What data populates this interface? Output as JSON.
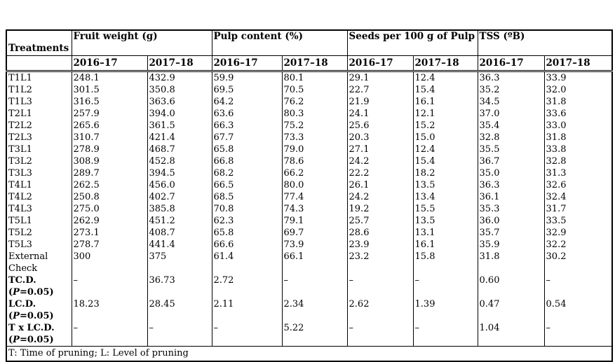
{
  "table": {
    "treatments_header": "Treatments",
    "column_groups": [
      {
        "label": "Fruit weight (g)"
      },
      {
        "label": "Pulp content (%)"
      },
      {
        "label": "Seeds per 100 g of Pulp"
      },
      {
        "label": "TSS (ºB)"
      }
    ],
    "year_headers": [
      "2016–17",
      "2017–18"
    ],
    "rows": [
      {
        "label": "T1L1",
        "values": [
          "248.1",
          "432.9",
          "59.9",
          "80.1",
          "29.1",
          "12.4",
          "36.3",
          "33.9"
        ]
      },
      {
        "label": "T1L2",
        "values": [
          "301.5",
          "350.8",
          "69.5",
          "70.5",
          "22.7",
          "15.4",
          "35.2",
          "32.0"
        ]
      },
      {
        "label": "T1L3",
        "values": [
          "316.5",
          "363.6",
          "64.2",
          "76.2",
          "21.9",
          "16.1",
          "34.5",
          "31.8"
        ]
      },
      {
        "label": "T2L1",
        "values": [
          "257.9",
          "394.0",
          "63.6",
          "80.3",
          "24.1",
          "12.1",
          "37.0",
          "33.6"
        ]
      },
      {
        "label": "T2L2",
        "values": [
          "265.6",
          "361.5",
          "66.3",
          "75.2",
          "25.6",
          "15.2",
          "35.4",
          "33.0"
        ]
      },
      {
        "label": "T2L3",
        "values": [
          "310.7",
          "421.4",
          "67.7",
          "73.3",
          "20.3",
          "15.0",
          "32.8",
          "31.8"
        ]
      },
      {
        "label": "T3L1",
        "values": [
          "278.9",
          "468.7",
          "65.8",
          "79.0",
          "27.1",
          "12.4",
          "35.5",
          "33.8"
        ]
      },
      {
        "label": "T3L2",
        "values": [
          "308.9",
          "452.8",
          "66.8",
          "78.6",
          "24.2",
          "15.4",
          "36.7",
          "32.8"
        ]
      },
      {
        "label": "T3L3",
        "values": [
          "289.7",
          "394.5",
          "68.2",
          "66.2",
          "22.2",
          "18.2",
          "35.0",
          "31.3"
        ]
      },
      {
        "label": "T4L1",
        "values": [
          "262.5",
          "456.0",
          "66.5",
          "80.0",
          "26.1",
          "13.5",
          "36.3",
          "32.6"
        ]
      },
      {
        "label": "T4L2",
        "values": [
          "250.8",
          "402.7",
          "68.5",
          "77.4",
          "24.2",
          "13.4",
          "36.1",
          "32.4"
        ]
      },
      {
        "label": "T4L3",
        "values": [
          "275.0",
          "385.8",
          "70.8",
          "74.3",
          "19.2",
          "15.5",
          "35.3",
          "31.7"
        ]
      },
      {
        "label": "T5L1",
        "values": [
          "262.9",
          "451.2",
          "62.3",
          "79.1",
          "25.7",
          "13.5",
          "36.0",
          "33.5"
        ]
      },
      {
        "label": "T5L2",
        "values": [
          "273.1",
          "408.7",
          "65.8",
          "69.7",
          "28.6",
          "13.1",
          "35.7",
          "32.9"
        ]
      },
      {
        "label": "T5L3",
        "values": [
          "278.7",
          "441.4",
          "66.6",
          "73.9",
          "23.9",
          "16.1",
          "35.9",
          "32.2"
        ]
      },
      {
        "label": "External Check",
        "values": [
          "300",
          "375",
          "61.4",
          "66.1",
          "23.2",
          "15.8",
          "31.8",
          "30.2"
        ]
      },
      {
        "label": "TC.D.",
        "sub": "(P=0.05)",
        "bold": true,
        "values": [
          "–",
          "36.73",
          "2.72",
          "–",
          "–",
          "–",
          "0.60",
          "–"
        ]
      },
      {
        "label": "LC.D.",
        "sub": "(P=0.05)",
        "bold": true,
        "values": [
          "18.23",
          "28.45",
          "2.11",
          "2.34",
          "2.62",
          "1.39",
          "0.47",
          "0.54"
        ]
      },
      {
        "label": "T x LC.D.",
        "sub": "(P=0.05)",
        "bold": true,
        "values": [
          "–",
          "–",
          "–",
          "5.22",
          "–",
          "–",
          "1.04",
          "–"
        ]
      }
    ],
    "footnote": "T: Time of pruning; L: Level of pruning"
  }
}
